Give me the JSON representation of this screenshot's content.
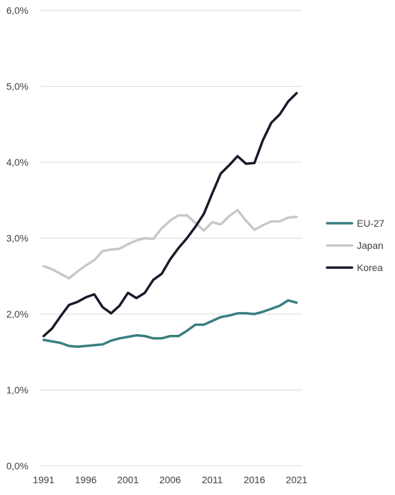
{
  "chart_data": {
    "type": "line",
    "title": "",
    "xlabel": "",
    "ylabel": "",
    "x": [
      1991,
      1992,
      1993,
      1994,
      1995,
      1996,
      1997,
      1998,
      1999,
      2000,
      2001,
      2002,
      2003,
      2004,
      2005,
      2006,
      2007,
      2008,
      2009,
      2010,
      2011,
      2012,
      2013,
      2014,
      2015,
      2016,
      2017,
      2018,
      2019,
      2020,
      2021
    ],
    "xticks": [
      "1991",
      "1996",
      "2001",
      "2006",
      "2011",
      "2016",
      "2021"
    ],
    "xtick_values": [
      1991,
      1996,
      2001,
      2006,
      2011,
      2016,
      2021
    ],
    "ylim": [
      0,
      6
    ],
    "yticks": [
      "0,0%",
      "1,0%",
      "2,0%",
      "3,0%",
      "4,0%",
      "5,0%",
      "6,0%"
    ],
    "ytick_values": [
      0,
      1,
      2,
      3,
      4,
      5,
      6
    ],
    "grid": true,
    "legend_position": "right",
    "series": [
      {
        "name": "EU-27",
        "color": "#3a7e7e",
        "values": [
          1.66,
          1.64,
          1.62,
          1.58,
          1.57,
          1.58,
          1.59,
          1.6,
          1.65,
          1.68,
          1.7,
          1.72,
          1.71,
          1.68,
          1.68,
          1.71,
          1.71,
          1.78,
          1.86,
          1.86,
          1.91,
          1.96,
          1.98,
          2.01,
          2.01,
          2.0,
          2.03,
          2.07,
          2.11,
          2.18,
          2.15
        ]
      },
      {
        "name": "Japan",
        "color": "#c8c8c8",
        "values": [
          2.63,
          2.59,
          2.53,
          2.47,
          2.56,
          2.64,
          2.71,
          2.83,
          2.85,
          2.86,
          2.92,
          2.97,
          3.0,
          2.99,
          3.13,
          3.23,
          3.3,
          3.3,
          3.2,
          3.1,
          3.21,
          3.18,
          3.29,
          3.37,
          3.23,
          3.11,
          3.17,
          3.22,
          3.22,
          3.27,
          3.28
        ]
      },
      {
        "name": "Korea",
        "color": "#1b1929",
        "values": [
          1.71,
          1.81,
          1.97,
          2.12,
          2.16,
          2.22,
          2.26,
          2.09,
          2.01,
          2.11,
          2.28,
          2.21,
          2.28,
          2.45,
          2.53,
          2.72,
          2.87,
          3.0,
          3.15,
          3.32,
          3.59,
          3.85,
          3.96,
          4.08,
          3.98,
          3.99,
          4.29,
          4.52,
          4.63,
          4.8,
          4.91
        ]
      }
    ]
  }
}
